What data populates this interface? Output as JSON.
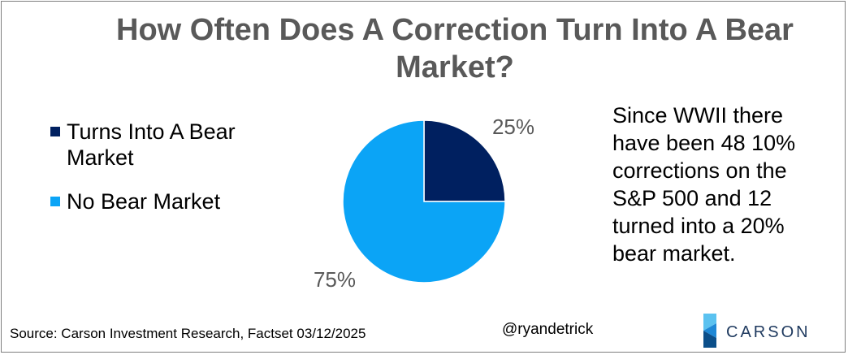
{
  "title": "How Often Does A Correction Turn Into A Bear Market?",
  "annotation": "Since WWII there have been 48 10% corrections on the S&P 500 and 12 turned into a 20% bear market.",
  "source": "Source: Carson Investment Research, Factset 03/12/2025",
  "handle": "@ryandetrick",
  "logo_text": "CARSON",
  "colors": {
    "bear": "#002060",
    "no_bear": "#0ba4f6",
    "title": "#595959",
    "data_label": "#595959",
    "logo_text": "#1f3a5f",
    "logo_light": "#5bc2f0",
    "logo_mid": "#1e88d6",
    "logo_dark": "#0b4f8a"
  },
  "chart_data": {
    "type": "pie",
    "title": "How Often Does A Correction Turn Into A Bear Market?",
    "legend_position": "left",
    "slices": [
      {
        "label": "Turns Into A Bear Market",
        "value": 25,
        "display": "25%",
        "color": "#002060"
      },
      {
        "label": "No Bear Market",
        "value": 75,
        "display": "75%",
        "color": "#0ba4f6"
      }
    ]
  }
}
